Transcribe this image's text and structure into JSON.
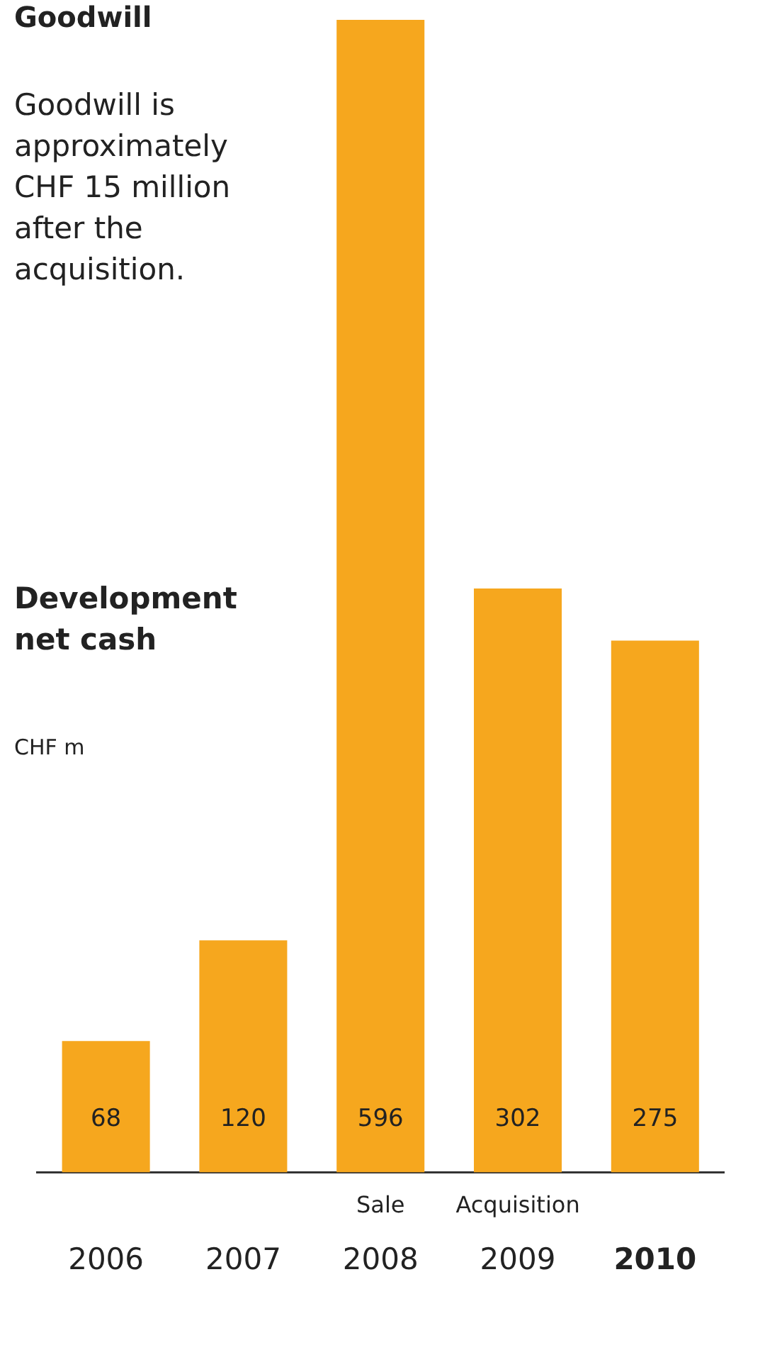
{
  "chart_data": {
    "type": "bar",
    "title": "Development net cash",
    "ylabel": "CHF m",
    "categories": [
      "2006",
      "2007",
      "2008",
      "2009",
      "2010"
    ],
    "values": [
      68,
      120,
      596,
      302,
      275
    ],
    "color": "#f6a71e",
    "data_labels": true,
    "annotations": [
      "Goodwill",
      "Goodwill is approximately CHF 15 million after the acquisition.",
      "Sale",
      "Acquisition"
    ]
  }
}
